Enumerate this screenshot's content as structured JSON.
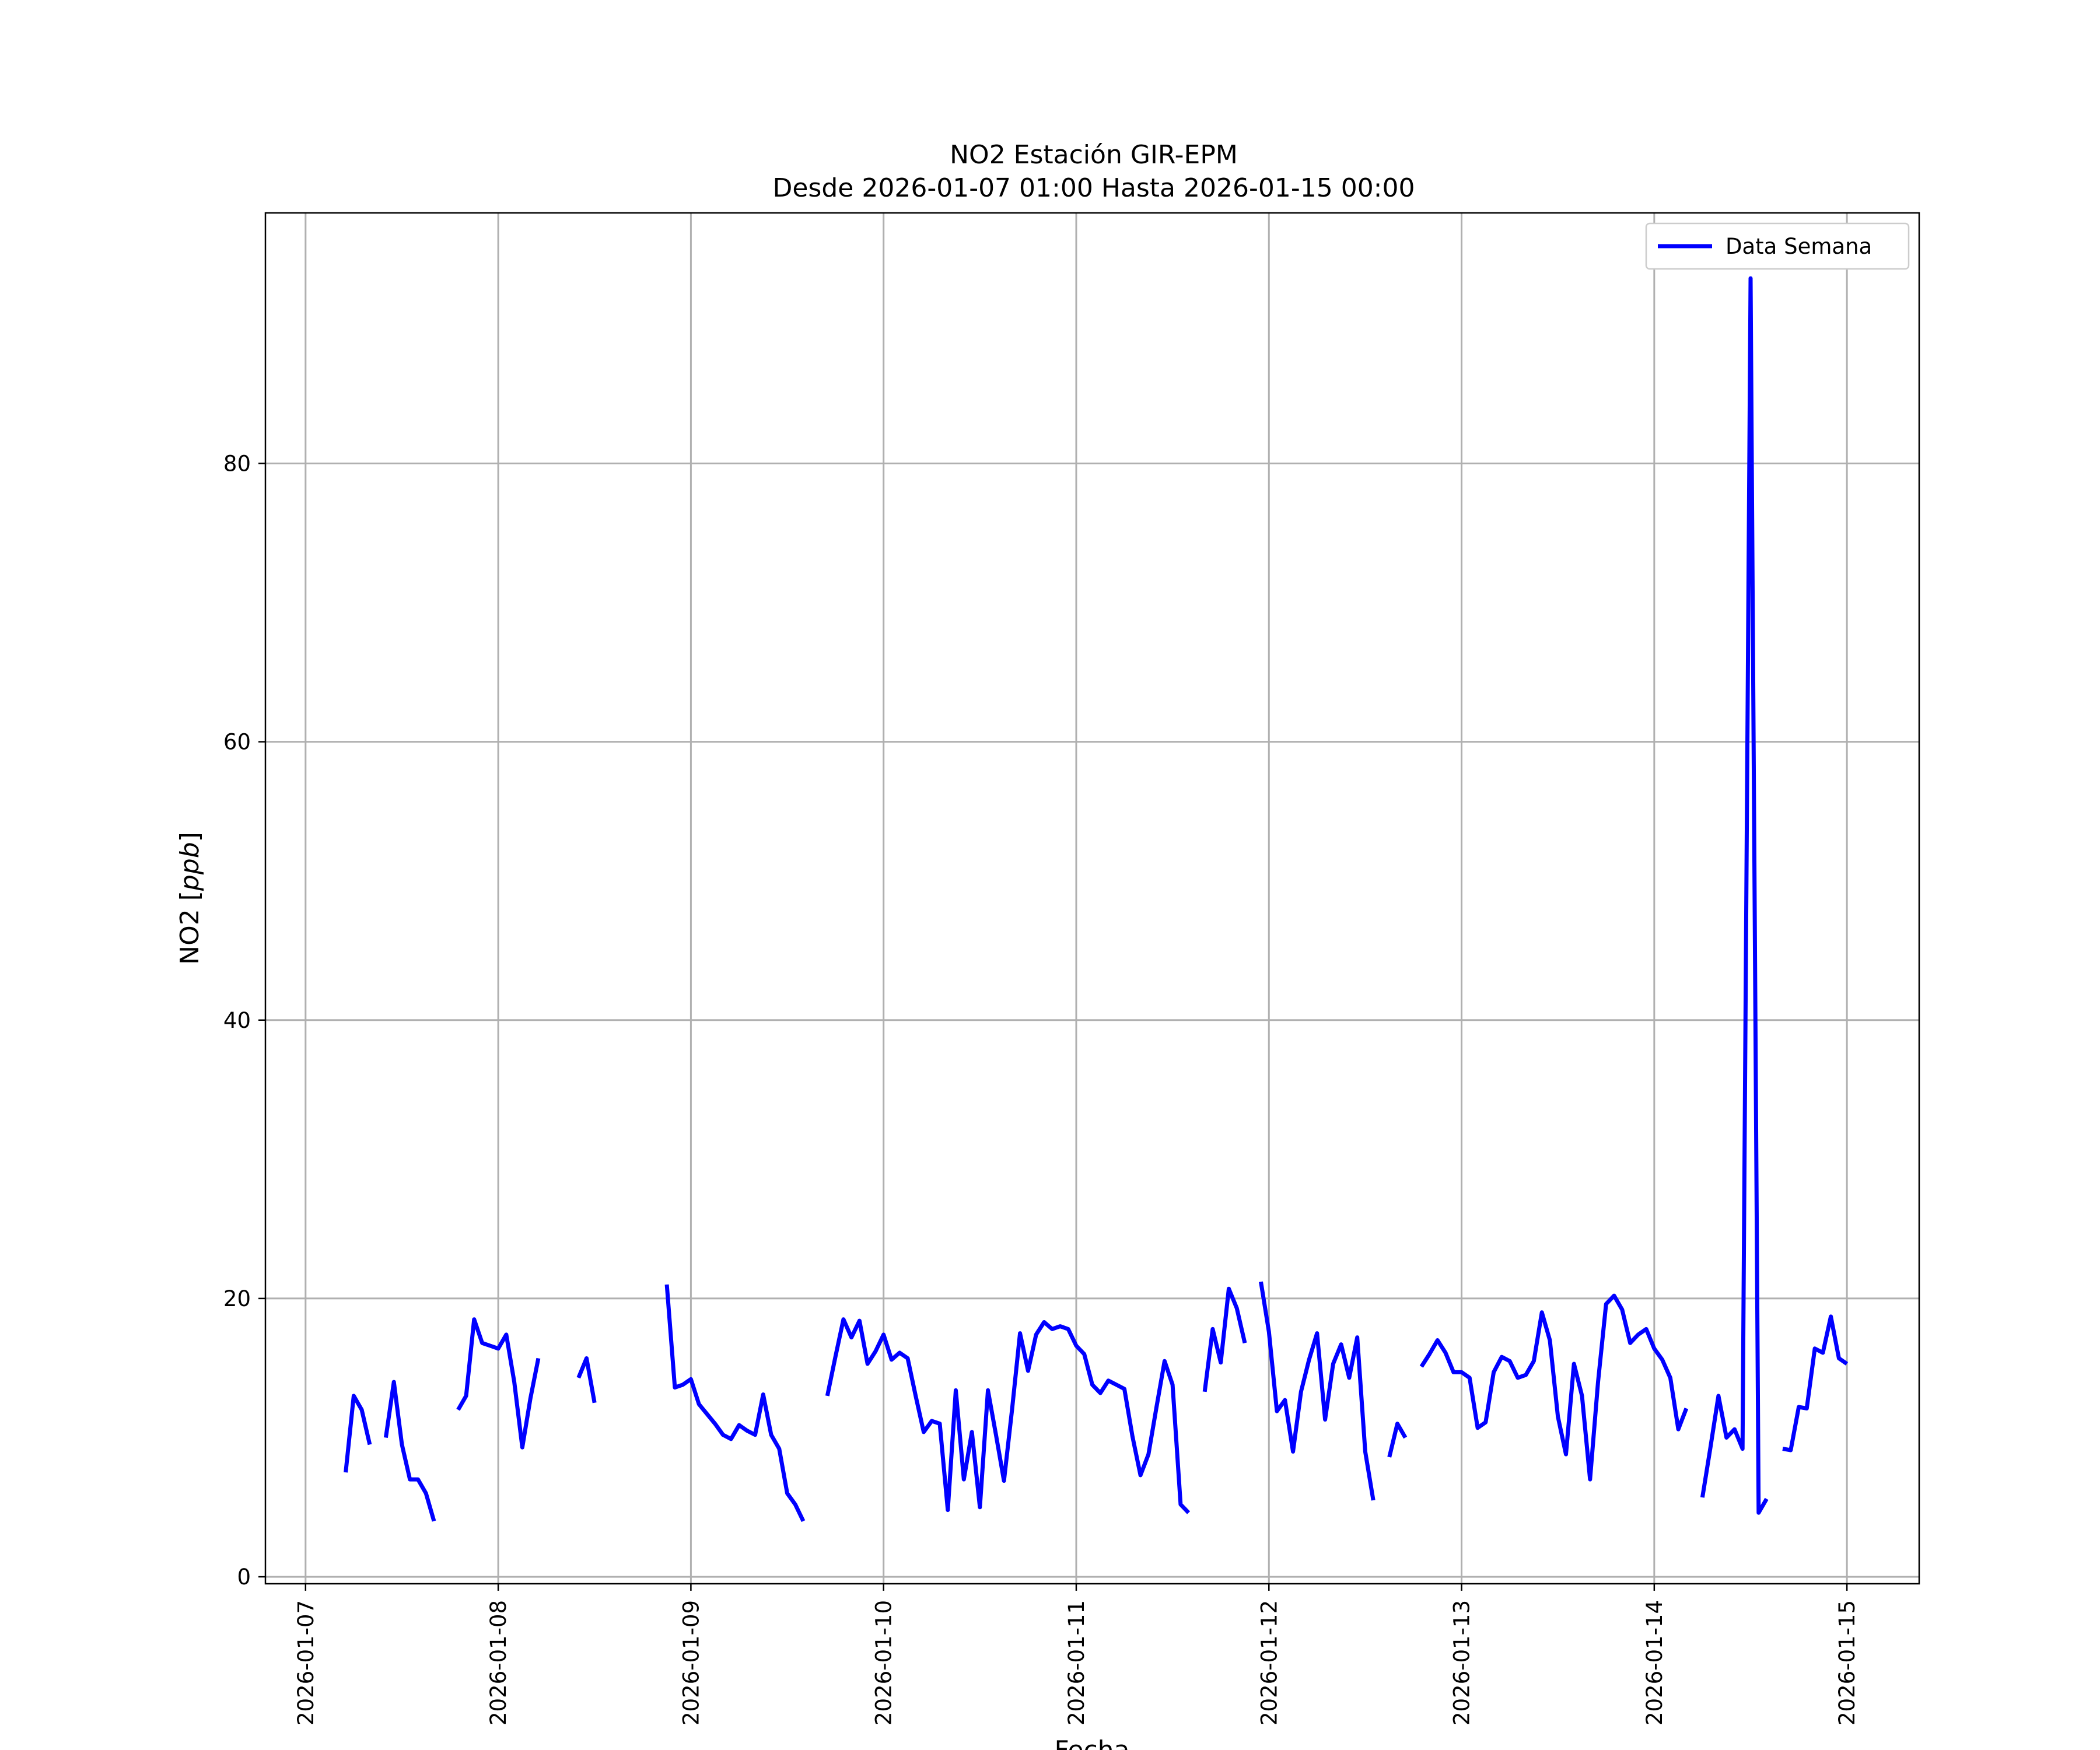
{
  "chart_data": {
    "type": "line",
    "title": "NO2 Estación GIR-EPM",
    "subtitle": "Desde 2026-01-07 01:00 Hasta 2026-01-15 00:00",
    "xlabel": "Fecha",
    "ylabel": "NO2 [ppb]",
    "xlim": [
      "2026-01-06 19:00",
      "2026-01-15 09:00"
    ],
    "ylim": [
      -0.5,
      98
    ],
    "x_ticks": [
      "2026-01-07",
      "2026-01-08",
      "2026-01-09",
      "2026-01-10",
      "2026-01-11",
      "2026-01-12",
      "2026-01-13",
      "2026-01-14",
      "2026-01-15"
    ],
    "y_ticks": [
      0,
      20,
      40,
      60,
      80
    ],
    "grid": true,
    "legend": {
      "placement": "top-right",
      "entries": [
        "Data Semana"
      ]
    },
    "series": [
      {
        "name": "Data Semana",
        "color": "#0000ff",
        "segments": [
          {
            "start": "2026-01-07 05:00",
            "values": [
              7.5,
              13,
              12,
              9.5
            ]
          },
          {
            "start": "2026-01-07 10:00",
            "values": [
              10,
              14,
              9.5,
              7,
              7,
              6,
              4
            ]
          },
          {
            "start": "2026-01-07 19:00",
            "values": [
              12,
              13,
              18.5,
              16.8,
              16.6,
              16.4,
              17.4,
              14,
              9.3,
              12.8,
              15.7
            ]
          },
          {
            "start": "2026-01-08 10:00",
            "values": [
              14.3,
              15.7,
              12.5
            ]
          },
          {
            "start": "2026-01-08 21:00",
            "values": [
              21,
              13.6,
              13.8,
              14.2,
              12.4,
              11.7,
              11,
              10.2,
              9.9,
              10.9,
              10.5,
              10.2,
              13.1,
              10.2,
              9.2,
              6,
              5.2,
              4
            ]
          },
          {
            "start": "2026-01-09 17:00",
            "values": [
              13,
              15.8,
              18.5,
              17.2,
              18.4,
              15.3,
              16.2,
              17.4,
              15.6,
              16.1,
              15.7,
              13,
              10.4,
              11.2,
              11,
              4.8,
              13.4,
              7,
              10.4,
              5,
              13.4,
              10.2,
              6.9,
              12,
              17.5,
              14.8,
              17.4,
              18.3,
              17.8,
              18,
              17.8,
              16.6,
              16,
              13.8,
              13.2,
              14.1,
              13.8,
              13.5,
              10.1,
              7.3,
              8.8,
              12.2,
              15.5,
              13.8,
              5.2,
              4.6
            ]
          },
          {
            "start": "2026-01-11 16:00",
            "values": [
              13.3,
              17.8,
              15.4,
              20.7,
              19.3,
              16.8
            ]
          },
          {
            "start": "2026-01-11 23:00",
            "values": [
              21.2,
              17.6,
              11.9,
              12.7,
              9,
              13.3,
              15.6,
              17.5,
              11.3,
              15.3,
              16.7,
              14.3,
              17.2,
              9,
              5.5
            ]
          },
          {
            "start": "2026-01-12 15:00",
            "values": [
              8.6,
              11,
              10
            ]
          },
          {
            "start": "2026-01-12 19:00",
            "values": [
              15.1,
              16,
              17,
              16.1,
              14.7,
              14.7,
              14.3,
              10.7,
              11.1,
              14.7,
              15.8,
              15.5,
              14.3,
              14.5,
              15.5,
              19,
              17,
              11.5,
              8.8,
              15.3,
              13,
              7,
              14,
              19.6,
              20.2,
              19.2,
              16.8,
              17.4,
              17.8,
              16.4,
              15.6,
              14.3,
              10.6,
              12.1
            ]
          },
          {
            "start": "2026-01-14 06:00",
            "values": [
              5.7,
              9.3,
              13,
              10,
              10.6,
              9.2,
              93.3,
              4.6,
              5.6
            ]
          },
          {
            "start": "2026-01-14 16:00",
            "values": [
              9.2,
              9.1,
              12.2,
              12.1,
              16.4,
              16.1,
              18.7,
              15.7,
              15.3
            ]
          }
        ]
      }
    ]
  }
}
